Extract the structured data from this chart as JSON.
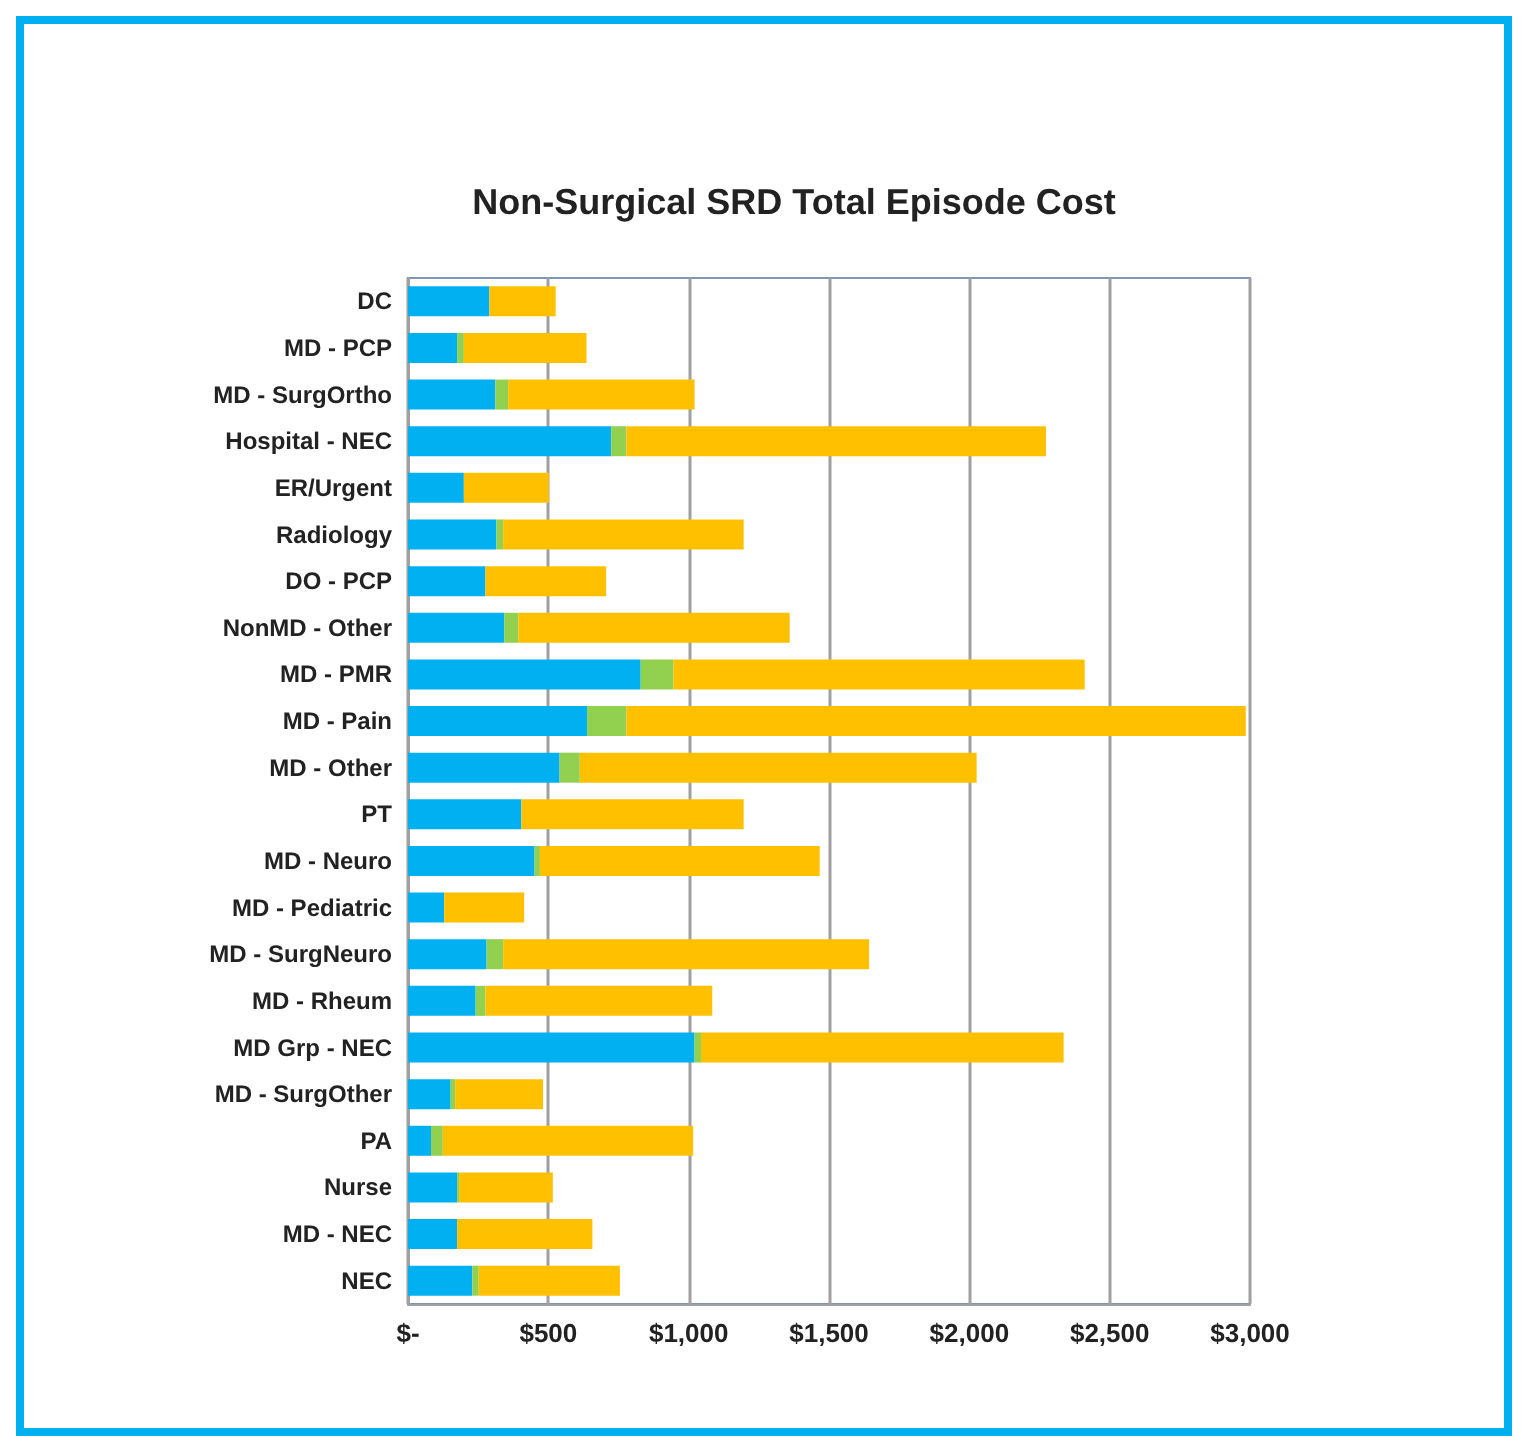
{
  "chart_data": {
    "type": "bar",
    "title": "Non-Surgical SRD Total Episode Cost",
    "orientation": "horizontal",
    "stacked": true,
    "categories": [
      "DC",
      "MD - PCP",
      "MD - SurgOrtho",
      "Hospital - NEC",
      "ER/Urgent",
      "Radiology",
      "DO - PCP",
      "NonMD - Other",
      "MD - PMR",
      "MD - Pain",
      "MD - Other",
      "PT",
      "MD - Neuro",
      "MD - Pediatric",
      "MD - SurgNeuro",
      "MD - Rheum",
      "MD Grp - NEC",
      "MD - SurgOther",
      "PA",
      "Nurse",
      "MD - NEC",
      "NEC"
    ],
    "series": [
      {
        "color": "#00b0f0",
        "values": [
          290,
          175,
          311,
          724,
          199,
          315,
          276,
          343,
          829,
          638,
          540,
          404,
          451,
          129,
          280,
          241,
          1021,
          152,
          82,
          175,
          175,
          229
        ]
      },
      {
        "color": "#92d050",
        "values": [
          0,
          24,
          46,
          54,
          0,
          24,
          0,
          50,
          117,
          140,
          72,
          0,
          19,
          0,
          59,
          35,
          23,
          16,
          42,
          7,
          0,
          23
        ]
      },
      {
        "color": "#ffc000",
        "values": [
          236,
          437,
          664,
          1495,
          303,
          857,
          430,
          967,
          1465,
          2207,
          1414,
          792,
          997,
          285,
          1304,
          808,
          1292,
          313,
          892,
          334,
          482,
          503
        ]
      }
    ],
    "xlim": [
      0,
      3000
    ],
    "xticks": [
      {
        "value": 0,
        "label": "$-"
      },
      {
        "value": 500,
        "label": "$500"
      },
      {
        "value": 1000,
        "label": "$1,000"
      },
      {
        "value": 1500,
        "label": "$1,500"
      },
      {
        "value": 2000,
        "label": "$2,000"
      },
      {
        "value": 2500,
        "label": "$2,500"
      },
      {
        "value": 3000,
        "label": "$3,000"
      }
    ],
    "grid": "x"
  }
}
